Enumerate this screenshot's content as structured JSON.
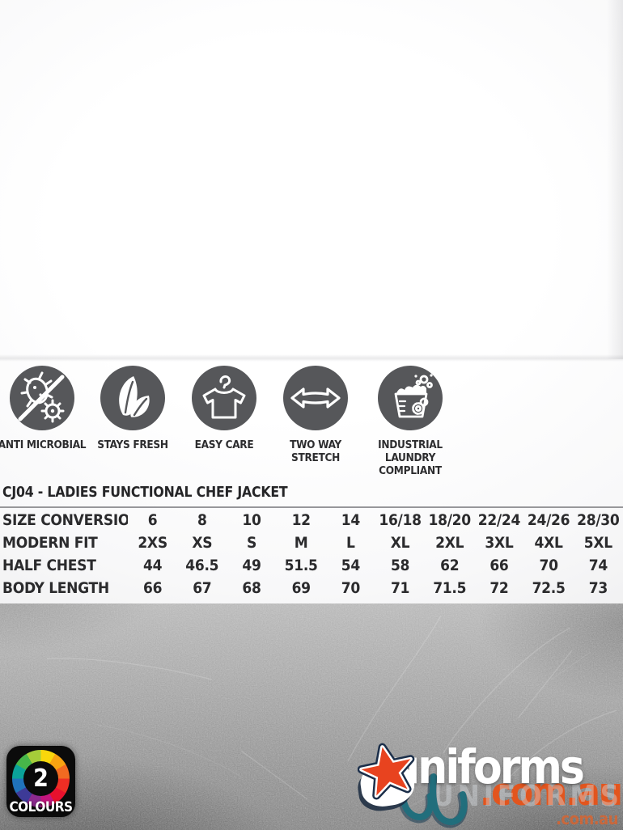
{
  "product": {
    "title": "CJ04 - LADIES FUNCTIONAL CHEF JACKET"
  },
  "features": [
    {
      "icon": "anti-microbial-icon",
      "label": "ANTI MICROBIAL"
    },
    {
      "icon": "leaves-icon",
      "label": "STAYS FRESH"
    },
    {
      "icon": "tshirt-hanger-icon",
      "label": "EASY CARE"
    },
    {
      "icon": "two-way-arrow-icon",
      "label": "TWO WAY\nSTRETCH"
    },
    {
      "icon": "laundry-tub-icon",
      "label": "INDUSTRIAL\nLAUNDRY\nCOMPLIANT"
    }
  ],
  "size_table": {
    "rows": [
      {
        "label": "SIZE CONVERSION",
        "values": [
          "6",
          "8",
          "10",
          "12",
          "14",
          "16/18",
          "18/20",
          "22/24",
          "24/26",
          "28/30"
        ]
      },
      {
        "label": "MODERN FIT",
        "values": [
          "2XS",
          "XS",
          "S",
          "M",
          "L",
          "XL",
          "2XL",
          "3XL",
          "4XL",
          "5XL"
        ]
      },
      {
        "label": "HALF CHEST",
        "values": [
          "44",
          "46.5",
          "49",
          "51.5",
          "54",
          "58",
          "62",
          "66",
          "70",
          "74"
        ]
      },
      {
        "label": "BODY LENGTH",
        "values": [
          "66",
          "67",
          "68",
          "69",
          "70",
          "71",
          "71.5",
          "72",
          "72.5",
          "73"
        ]
      }
    ]
  },
  "badge": {
    "count": "2",
    "label": "COLOURS"
  },
  "logo": {
    "brand": "uniforms",
    "brand_visible": "niforms",
    "watermark": "UNIFORMS",
    "domain": ".com.au",
    "domain_small": ".com.au"
  },
  "colors": {
    "icon_circle": "#56575a",
    "text_dark": "#2b2b2d",
    "rule_gray": "#97979a",
    "logo_orange": "#e2551e",
    "logo_teal": "#1f6f7d",
    "star_red": "#e8431f"
  }
}
